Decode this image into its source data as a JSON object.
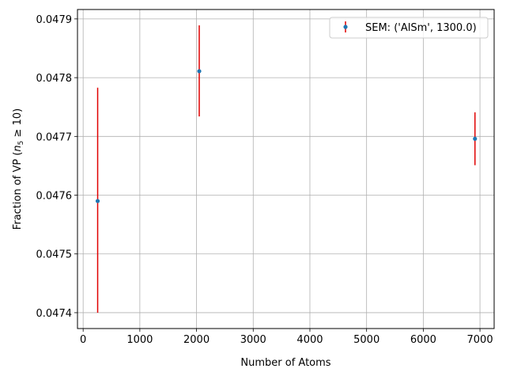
{
  "chart_data": {
    "type": "scatter",
    "title": "",
    "xlabel": "Number of Atoms",
    "ylabel_prefix": "Fraction of VP (",
    "ylabel_var": "n",
    "ylabel_sub": "5",
    "ylabel_suffix": " ≥ 10)",
    "xlim": [
      -100,
      7250
    ],
    "ylim": [
      0.047373,
      0.047916
    ],
    "xticks": [
      0,
      1000,
      2000,
      3000,
      4000,
      5000,
      6000,
      7000
    ],
    "xtick_labels": [
      "0",
      "1000",
      "2000",
      "3000",
      "4000",
      "5000",
      "6000",
      "7000"
    ],
    "yticks": [
      0.0474,
      0.0475,
      0.0476,
      0.0477,
      0.0478,
      0.0479
    ],
    "ytick_labels": [
      "0.0474",
      "0.0475",
      "0.0476",
      "0.0477",
      "0.0478",
      "0.0479"
    ],
    "grid": true,
    "legend_position": "top-right",
    "series": [
      {
        "name": "SEM: ('AlSm', 1300.0)",
        "marker_color": "#1f77b4",
        "errorbar_color": "#e00000",
        "points": [
          {
            "x": 256,
            "y": 0.04759,
            "ylow": 0.0474,
            "yhigh": 0.047783
          },
          {
            "x": 2048,
            "y": 0.047811,
            "ylow": 0.047734,
            "yhigh": 0.047889
          },
          {
            "x": 6912,
            "y": 0.047696,
            "ylow": 0.047651,
            "yhigh": 0.047741
          }
        ]
      }
    ]
  }
}
